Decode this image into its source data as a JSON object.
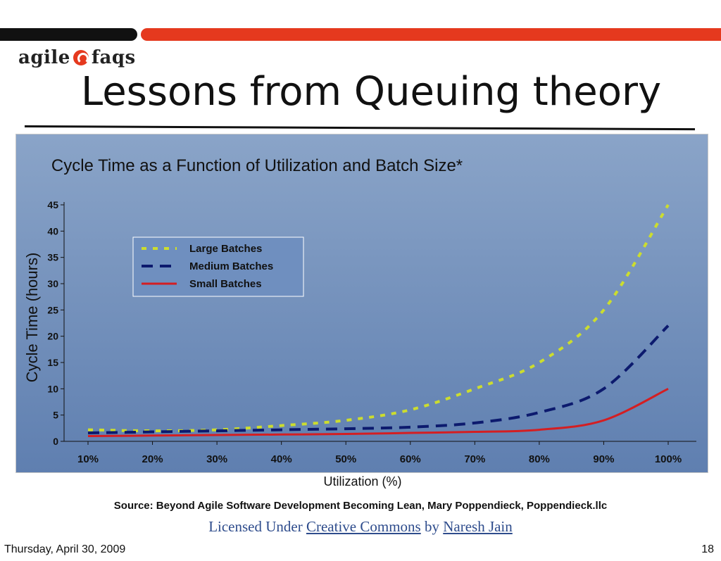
{
  "branding": {
    "logo_left": "agile",
    "logo_right": "faqs"
  },
  "slide": {
    "title": "Lessons from Queuing theory",
    "source": "Source: Beyond Agile Software Development Becoming Lean, Mary Poppendieck, Poppendieck.llc",
    "license": {
      "prefix": "Licensed Under",
      "license_link": "Creative Commons",
      "by": "by",
      "author_link": "Naresh Jain"
    },
    "footer_date": "Thursday, April 30, 2009",
    "page_number": "18"
  },
  "colors": {
    "large": "#ccdd2e",
    "medium": "#0c1a6e",
    "small": "#d41e22",
    "panel_top": "#8aa4c8",
    "panel_bottom": "#5f7fb0"
  },
  "chart_data": {
    "type": "line",
    "title": "Cycle Time as a Function of Utilization and Batch Size*",
    "xlabel": "Utilization (%)",
    "ylabel": "Cycle Time (hours)",
    "categories": [
      "10%",
      "20%",
      "30%",
      "40%",
      "50%",
      "60%",
      "70%",
      "80%",
      "90%",
      "100%"
    ],
    "x": [
      10,
      20,
      30,
      40,
      50,
      60,
      70,
      80,
      90,
      100
    ],
    "ylim": [
      0,
      45
    ],
    "yticks": [
      0,
      5,
      10,
      15,
      20,
      25,
      30,
      35,
      40,
      45
    ],
    "legend_position": "top-left",
    "series": [
      {
        "name": "Large Batches",
        "key": "large",
        "dash": "dotted",
        "values": [
          2.2,
          2.0,
          2.2,
          3.0,
          4.0,
          6.0,
          10.0,
          15.0,
          25.0,
          45.0
        ]
      },
      {
        "name": "Medium Batches",
        "key": "medium",
        "dash": "dashed",
        "values": [
          1.6,
          1.8,
          2.0,
          2.2,
          2.4,
          2.7,
          3.5,
          5.5,
          10.0,
          22.0
        ]
      },
      {
        "name": "Small Batches",
        "key": "small",
        "dash": "solid",
        "values": [
          1.0,
          1.1,
          1.2,
          1.3,
          1.4,
          1.6,
          1.8,
          2.2,
          4.0,
          10.0
        ]
      }
    ]
  }
}
